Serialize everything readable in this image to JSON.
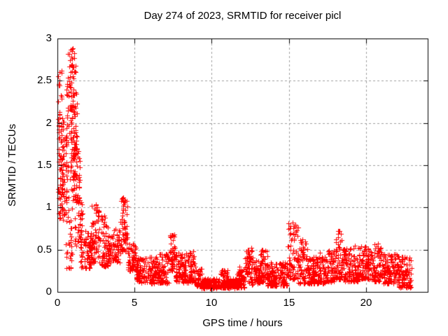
{
  "chart_data": {
    "type": "scatter",
    "title": "Day 274 of 2023, SRMTID for receiver picl",
    "xlabel": "GPS time / hours",
    "ylabel": "SRMTID / TECUs",
    "xlim": [
      0,
      24
    ],
    "ylim": [
      0,
      3
    ],
    "xticks": [
      {
        "value": 0,
        "label": "0"
      },
      {
        "value": 5,
        "label": "5"
      },
      {
        "value": 10,
        "label": "10"
      },
      {
        "value": 15,
        "label": "15"
      },
      {
        "value": 20,
        "label": "20"
      }
    ],
    "yticks": [
      {
        "value": 0,
        "label": "0"
      },
      {
        "value": 0.5,
        "label": "0.5"
      },
      {
        "value": 1,
        "label": "1"
      },
      {
        "value": 1.5,
        "label": "1.5"
      },
      {
        "value": 2,
        "label": "2"
      },
      {
        "value": 2.5,
        "label": "2.5"
      },
      {
        "value": 3,
        "label": "3"
      }
    ],
    "grid": "dashed-gray-at-major-ticks",
    "legend": "none",
    "background": "#ffffff",
    "frame_color": "#000000",
    "grid_color": "#a0a0a0",
    "series": [
      {
        "name": "SRMTID",
        "marker": "plus",
        "color": "#ff0000",
        "marker_size_px": 7,
        "seed": 274274,
        "peaks_format": "[gps_hour, tecu_value] observed extreme points",
        "peaks": [
          [
            0.15,
            2.6
          ],
          [
            0.78,
            2.82
          ],
          [
            0.88,
            2.87
          ],
          [
            1.02,
            2.88
          ],
          [
            1.08,
            2.77
          ],
          [
            0.85,
            0.28
          ],
          [
            2.48,
            1.04
          ],
          [
            3.02,
            0.9
          ],
          [
            4.28,
            1.12
          ],
          [
            4.34,
            1.06
          ],
          [
            7.38,
            0.67
          ],
          [
            10.8,
            0.26
          ],
          [
            12.55,
            0.52
          ],
          [
            13.3,
            0.5
          ],
          [
            15.25,
            0.82
          ],
          [
            15.32,
            0.78
          ],
          [
            15.9,
            0.62
          ],
          [
            17.0,
            0.46
          ],
          [
            18.2,
            0.72
          ],
          [
            19.3,
            0.55
          ],
          [
            20.8,
            0.57
          ],
          [
            21.8,
            0.45
          ],
          [
            22.5,
            0.4
          ]
        ],
        "envelope_segments_format": "[hour_start, hour_end, value_min, value_max, point_count, low_bias_exponent]",
        "envelope_segments": [
          [
            0.05,
            0.35,
            0.85,
            2.62,
            85,
            1.0
          ],
          [
            0.3,
            0.62,
            0.85,
            2.05,
            45,
            1.0
          ],
          [
            0.55,
            0.95,
            0.28,
            2.55,
            75,
            1.0
          ],
          [
            0.7,
            1.2,
            2.35,
            2.88,
            28,
            1.2
          ],
          [
            0.85,
            1.3,
            1.55,
            2.35,
            60,
            1.0
          ],
          [
            1.0,
            1.45,
            1.05,
            1.75,
            60,
            1.0
          ],
          [
            1.1,
            1.62,
            0.55,
            1.1,
            40,
            1.0
          ],
          [
            1.5,
            2.25,
            0.28,
            0.72,
            85,
            1.2
          ],
          [
            2.2,
            2.7,
            0.35,
            1.04,
            60,
            1.5
          ],
          [
            2.7,
            3.3,
            0.3,
            0.9,
            70,
            1.6
          ],
          [
            3.3,
            4.05,
            0.35,
            0.75,
            80,
            1.3
          ],
          [
            4.05,
            4.55,
            0.45,
            1.12,
            60,
            1.5
          ],
          [
            4.55,
            5.1,
            0.25,
            0.6,
            60,
            1.3
          ],
          [
            5.1,
            6.6,
            0.1,
            0.42,
            165,
            1.3
          ],
          [
            6.6,
            7.2,
            0.1,
            0.45,
            70,
            1.4
          ],
          [
            7.2,
            7.65,
            0.25,
            0.68,
            45,
            1.4
          ],
          [
            7.65,
            8.15,
            0.12,
            0.48,
            55,
            1.4
          ],
          [
            8.15,
            8.95,
            0.1,
            0.48,
            90,
            1.5
          ],
          [
            8.95,
            9.35,
            0.06,
            0.28,
            45,
            1.3
          ],
          [
            9.35,
            10.55,
            0.04,
            0.16,
            140,
            1.2
          ],
          [
            10.55,
            11.05,
            0.05,
            0.26,
            60,
            1.5
          ],
          [
            11.05,
            11.65,
            0.04,
            0.16,
            70,
            1.2
          ],
          [
            11.65,
            12.15,
            0.05,
            0.3,
            60,
            1.4
          ],
          [
            12.15,
            12.7,
            0.08,
            0.52,
            65,
            1.6
          ],
          [
            12.7,
            13.15,
            0.1,
            0.38,
            50,
            1.4
          ],
          [
            13.15,
            13.6,
            0.12,
            0.5,
            55,
            1.5
          ],
          [
            13.6,
            14.9,
            0.07,
            0.35,
            150,
            1.4
          ],
          [
            14.9,
            15.6,
            0.15,
            0.82,
            75,
            1.8
          ],
          [
            15.6,
            16.2,
            0.1,
            0.62,
            65,
            1.8
          ],
          [
            16.2,
            17.4,
            0.1,
            0.42,
            135,
            1.4
          ],
          [
            17.4,
            18.0,
            0.12,
            0.5,
            65,
            1.4
          ],
          [
            18.0,
            18.5,
            0.15,
            0.72,
            55,
            1.6
          ],
          [
            18.5,
            19.5,
            0.12,
            0.52,
            115,
            1.5
          ],
          [
            19.5,
            20.5,
            0.15,
            0.55,
            115,
            1.5
          ],
          [
            20.5,
            21.1,
            0.12,
            0.58,
            65,
            1.5
          ],
          [
            21.1,
            22.1,
            0.1,
            0.45,
            110,
            1.4
          ],
          [
            22.1,
            22.95,
            0.05,
            0.42,
            100,
            1.3
          ]
        ]
      }
    ]
  }
}
